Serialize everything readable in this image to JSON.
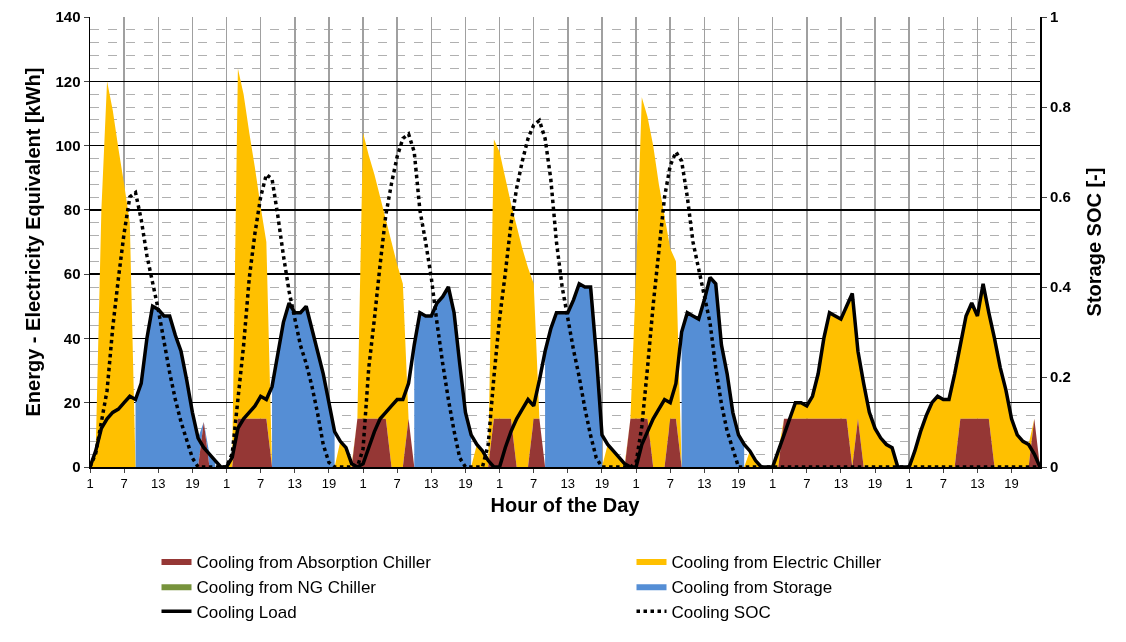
{
  "chart_data": {
    "type": "area",
    "stacked": true,
    "xlabel": "Hour of the Day",
    "ylabel": "Energy - Electricity Equivalent [kWh]",
    "y2label": "Storage SOC [-]",
    "categories": [
      "1",
      null,
      null,
      null,
      null,
      null,
      "7",
      null,
      null,
      null,
      null,
      null,
      "13",
      null,
      null,
      null,
      null,
      null,
      "19",
      null,
      null,
      null,
      null,
      null,
      "1",
      null,
      null,
      null,
      null,
      null,
      "7",
      null,
      null,
      null,
      null,
      null,
      "13",
      null,
      null,
      null,
      null,
      null,
      "19",
      null,
      null,
      null,
      null,
      null,
      "1",
      null,
      null,
      null,
      null,
      null,
      "7",
      null,
      null,
      null,
      null,
      null,
      "13",
      null,
      null,
      null,
      null,
      null,
      "19",
      null,
      null,
      null,
      null,
      null,
      "1",
      null,
      null,
      null,
      null,
      null,
      "7",
      null,
      null,
      null,
      null,
      null,
      "13",
      null,
      null,
      null,
      null,
      null,
      "19",
      null,
      null,
      null,
      null,
      null,
      "1",
      null,
      null,
      null,
      null,
      null,
      "7",
      null,
      null,
      null,
      null,
      null,
      "13",
      null,
      null,
      null,
      null,
      null,
      "19",
      null,
      null,
      null,
      null,
      null,
      "1",
      null,
      null,
      null,
      null,
      null,
      "7",
      null,
      null,
      null,
      null,
      null,
      "13",
      null,
      null,
      null,
      null,
      null,
      "19",
      null,
      null,
      null,
      null,
      null,
      "1",
      null,
      null,
      null,
      null,
      null,
      "7",
      null,
      null,
      null,
      null,
      null,
      "13",
      null,
      null,
      null,
      null,
      null,
      "19",
      null,
      null,
      null,
      null,
      null
    ],
    "series": [
      {
        "name": "Cooling from Absorption Chiller",
        "color": "#953735",
        "values": [
          0,
          0,
          0,
          0,
          0,
          0,
          0,
          0,
          0,
          0,
          0,
          0,
          0,
          0,
          0,
          0,
          0,
          0,
          0,
          0,
          14,
          0,
          0,
          0,
          0,
          0,
          15,
          15,
          15,
          15,
          15,
          15,
          0,
          0,
          0,
          0,
          0,
          0,
          0,
          0,
          0,
          0,
          0,
          0,
          0,
          0,
          0,
          15,
          15,
          15,
          15,
          15,
          15,
          0,
          0,
          0,
          15,
          0,
          0,
          0,
          0,
          0,
          0,
          0,
          0,
          0,
          0,
          0,
          0,
          0,
          0,
          15,
          15,
          15,
          15,
          0,
          0,
          0,
          15,
          15,
          0,
          0,
          0,
          0,
          0,
          0,
          0,
          0,
          0,
          0,
          0,
          0,
          0,
          0,
          0,
          15,
          15,
          15,
          15,
          0,
          0,
          0,
          15,
          15,
          0,
          0,
          0,
          0,
          0,
          0,
          0,
          0,
          0,
          0,
          0,
          0,
          0,
          0,
          0,
          0,
          0,
          0,
          15,
          15,
          15,
          15,
          15,
          15,
          15,
          15,
          15,
          15,
          15,
          15,
          0,
          15,
          0,
          0,
          0,
          0,
          0,
          0,
          0,
          0,
          0,
          0,
          0,
          0,
          0,
          0,
          0,
          0,
          0,
          15,
          15,
          15,
          15,
          15,
          15,
          0,
          0,
          0,
          0,
          0,
          0,
          0,
          15,
          0
        ]
      },
      {
        "name": "Cooling from Electric Chiller",
        "color": "#ffc000",
        "values": [
          0,
          5,
          80,
          120,
          111,
          99,
          88,
          76,
          0,
          0,
          0,
          0,
          0,
          0,
          0,
          0,
          0,
          0,
          0,
          0,
          0,
          0,
          0,
          0,
          0,
          3,
          109,
          101,
          89,
          78,
          66,
          55,
          0,
          0,
          0,
          0,
          0,
          0,
          0,
          0,
          0,
          0,
          0,
          0,
          8,
          6,
          1,
          0,
          89,
          82,
          76,
          69,
          62,
          70,
          63,
          57,
          0,
          0,
          0,
          0,
          0,
          0,
          0,
          0,
          0,
          0,
          0,
          0,
          7,
          5,
          2,
          87,
          83,
          75,
          67,
          75,
          68,
          62,
          42,
          0,
          0,
          0,
          0,
          0,
          0,
          0,
          0,
          0,
          0,
          0,
          0,
          7,
          5,
          3,
          1,
          0,
          45,
          100,
          94,
          100,
          88,
          78,
          53,
          49,
          0,
          0,
          0,
          0,
          0,
          0,
          0,
          0,
          0,
          0,
          0,
          0,
          5,
          2,
          0,
          0,
          0,
          5,
          0,
          0,
          5,
          5,
          4,
          7,
          14,
          25,
          33,
          32,
          31,
          35,
          54,
          21,
          26,
          17,
          12,
          9,
          7,
          6,
          0,
          0,
          0,
          5,
          11,
          16,
          20,
          22,
          21,
          21,
          29,
          23,
          32,
          36,
          32,
          42,
          33,
          40,
          31,
          24,
          15,
          10,
          8,
          7,
          0,
          0
        ]
      },
      {
        "name": "Cooling from NG Chiller",
        "color": "#77933c",
        "values": [
          null,
          null,
          null,
          null,
          null,
          null,
          null,
          null,
          null,
          null,
          null,
          null,
          null,
          null,
          null,
          null,
          null,
          null,
          null,
          null,
          null,
          null,
          null,
          null,
          null,
          null,
          null,
          null,
          null,
          null,
          null,
          null,
          null,
          null,
          null,
          null,
          null,
          null,
          null,
          null,
          null,
          null,
          null,
          null,
          null,
          null,
          null,
          null,
          null,
          null,
          null,
          null,
          null,
          null,
          null,
          null,
          null,
          null,
          null,
          null,
          null,
          null,
          null,
          null,
          null,
          null,
          null,
          null,
          null,
          null,
          null,
          null,
          null,
          null,
          null,
          null,
          null,
          null,
          null,
          null,
          null,
          null,
          null,
          null,
          null,
          null,
          null,
          null,
          null,
          null,
          null,
          null,
          null,
          null,
          null,
          null,
          null,
          null,
          null,
          null,
          null,
          null,
          null,
          null,
          null,
          null,
          null,
          null,
          null,
          null,
          null,
          null,
          null,
          null,
          null,
          null,
          null,
          null,
          null,
          null,
          null,
          null,
          null,
          null,
          null,
          null,
          null,
          null,
          null,
          null,
          null,
          null,
          null,
          null,
          null,
          null,
          null,
          null,
          null,
          null,
          null,
          null,
          null,
          null,
          null,
          null,
          null,
          null,
          null,
          null,
          null,
          null,
          null,
          null,
          null,
          null,
          null,
          null,
          null,
          null,
          null,
          null,
          null,
          null,
          null,
          null,
          null,
          null
        ]
      },
      {
        "name": "Cooling from Storage",
        "color": "#558ed5",
        "values": [
          null,
          null,
          null,
          null,
          null,
          null,
          null,
          null,
          21,
          26,
          40,
          50,
          49,
          47,
          47,
          41,
          36,
          27,
          17,
          9,
          0,
          4,
          2,
          null,
          null,
          null,
          null,
          null,
          null,
          null,
          null,
          null,
          25,
          35,
          45,
          51,
          48,
          48,
          50,
          43,
          36,
          29,
          20,
          11,
          null,
          null,
          null,
          null,
          null,
          null,
          null,
          null,
          null,
          null,
          null,
          null,
          null,
          38,
          48,
          47,
          47,
          51,
          53,
          56,
          48,
          32,
          17,
          10,
          null,
          null,
          null,
          null,
          null,
          null,
          null,
          null,
          null,
          null,
          null,
          null,
          36,
          43,
          48,
          48,
          48,
          52,
          57,
          56,
          56,
          35,
          10,
          null,
          null,
          null,
          null,
          null,
          null,
          null,
          null,
          null,
          null,
          null,
          null,
          null,
          42,
          48,
          47,
          46,
          52,
          59,
          57,
          38,
          29,
          17,
          10,
          7,
          null,
          null,
          null,
          null,
          null,
          null,
          null,
          null,
          null,
          null,
          null,
          null,
          null,
          null,
          null,
          null,
          null,
          null,
          null,
          null,
          null,
          null,
          null,
          null,
          null,
          null,
          null,
          null,
          null,
          null,
          null,
          null,
          null,
          null,
          null,
          null,
          null,
          null,
          null,
          null,
          null,
          null,
          null,
          null,
          null,
          null,
          null,
          null,
          null,
          null,
          null,
          null
        ]
      },
      {
        "name": "Cooling Load",
        "type": "line",
        "line_style": "solid",
        "color": "#000000",
        "values": [
          0,
          5,
          12,
          15,
          17,
          18,
          20,
          22,
          21,
          26,
          40,
          50,
          49,
          47,
          47,
          41,
          36,
          27,
          17,
          9,
          6,
          4,
          2,
          0,
          0,
          3,
          12,
          15,
          17,
          19,
          22,
          21,
          25,
          35,
          45,
          51,
          48,
          48,
          50,
          43,
          36,
          29,
          20,
          11,
          8,
          6,
          1,
          0,
          1,
          6,
          11,
          15,
          17,
          19,
          21,
          21,
          26,
          38,
          48,
          47,
          47,
          51,
          53,
          56,
          48,
          32,
          17,
          10,
          7,
          5,
          2,
          0,
          0,
          6,
          11,
          15,
          18,
          21,
          19,
          27,
          36,
          43,
          48,
          48,
          48,
          52,
          57,
          56,
          56,
          35,
          10,
          7,
          5,
          3,
          1,
          0,
          0,
          7,
          11,
          15,
          18,
          21,
          20,
          26,
          42,
          48,
          47,
          46,
          52,
          59,
          57,
          38,
          29,
          17,
          10,
          7,
          5,
          2,
          0,
          0,
          0,
          5,
          10,
          15,
          20,
          20,
          19,
          22,
          29,
          40,
          48,
          47,
          46,
          50,
          54,
          36,
          26,
          17,
          12,
          9,
          7,
          6,
          0,
          0,
          0,
          5,
          11,
          16,
          20,
          22,
          21,
          21,
          29,
          38,
          47,
          51,
          47,
          57,
          48,
          40,
          31,
          24,
          15,
          10,
          8,
          7,
          4,
          0
        ]
      },
      {
        "name": "Cooling SOC",
        "type": "line",
        "line_style": "dotted",
        "axis": "y2",
        "color": "#000000",
        "values": [
          0,
          0.03,
          0.1,
          0.17,
          0.31,
          0.42,
          0.52,
          0.6,
          0.61,
          0.55,
          0.47,
          0.41,
          0.35,
          0.28,
          0.21,
          0.15,
          0.1,
          0.06,
          0.02,
          0,
          0,
          0,
          0,
          0,
          0,
          0.03,
          0.15,
          0.27,
          0.42,
          0.52,
          0.6,
          0.65,
          0.64,
          0.56,
          0.47,
          0.39,
          0.33,
          0.27,
          0.23,
          0.18,
          0.12,
          0.05,
          0.01,
          0,
          0,
          0,
          0,
          0,
          0.04,
          0.22,
          0.33,
          0.45,
          0.56,
          0.63,
          0.69,
          0.73,
          0.74,
          0.7,
          0.57,
          0.5,
          0.42,
          0.32,
          0.23,
          0.15,
          0.08,
          0.02,
          0,
          0,
          0,
          0,
          0.05,
          0.2,
          0.33,
          0.43,
          0.54,
          0.62,
          0.68,
          0.73,
          0.76,
          0.77,
          0.73,
          0.64,
          0.5,
          0.4,
          0.33,
          0.26,
          0.2,
          0.13,
          0.07,
          0.02,
          0,
          0,
          0,
          0,
          0,
          0,
          0.01,
          0.09,
          0.22,
          0.36,
          0.48,
          0.6,
          0.67,
          0.7,
          0.68,
          0.6,
          0.5,
          0.44,
          0.38,
          0.32,
          0.22,
          0.14,
          0.08,
          0.04,
          0,
          0,
          0,
          0,
          0,
          0,
          0,
          0,
          0,
          0,
          0,
          0,
          0,
          0,
          0,
          0,
          0,
          0,
          0,
          0,
          0,
          0,
          0,
          0,
          0,
          0,
          0,
          0,
          0,
          0,
          0,
          0,
          0,
          0,
          0,
          0,
          0,
          0,
          0,
          0,
          0,
          0,
          0,
          0,
          0,
          0,
          0,
          0,
          0,
          0,
          0,
          0,
          0,
          0
        ]
      }
    ],
    "ylim": [
      0,
      140
    ],
    "yticks": [
      0,
      20,
      40,
      60,
      80,
      100,
      120,
      140
    ],
    "y2lim": [
      0,
      1
    ],
    "y2ticks": [
      0,
      0.2,
      0.4,
      0.6,
      0.8,
      1
    ],
    "grid": true,
    "legend": "bottom"
  }
}
